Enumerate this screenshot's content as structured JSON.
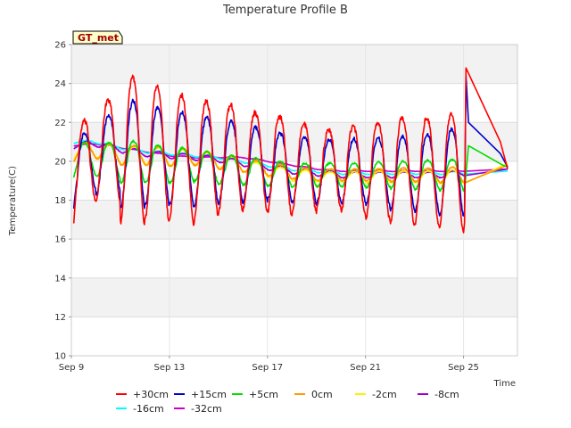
{
  "chart_data": {
    "type": "line",
    "title": "Temperature Profile B",
    "xlabel": "Time",
    "ylabel": "Temperature(C)",
    "badge": "GT_met",
    "xlim": [
      0,
      18.2
    ],
    "ylim": [
      10,
      26
    ],
    "x_ticks": [
      {
        "label": "Sep 9",
        "value": 0
      },
      {
        "label": "Sep 13",
        "value": 4
      },
      {
        "label": "Sep 17",
        "value": 8
      },
      {
        "label": "Sep 21",
        "value": 12
      },
      {
        "label": "Sep 25",
        "value": 16
      }
    ],
    "y_ticks": [
      10,
      12,
      14,
      16,
      18,
      20,
      22,
      24,
      26
    ],
    "grid": true,
    "legend_position": "bottom",
    "series": [
      {
        "name": "+30cm",
        "color": "#ff0000",
        "base": [
          18.6,
          20.5,
          20.6,
          20.5,
          20.3,
          20.0,
          20.2,
          20.1,
          19.9,
          19.7,
          19.6,
          19.6,
          19.5,
          19.5,
          19.5,
          19.5,
          19.4,
          19.5,
          19.6
        ],
        "amp": [
          5.0,
          5.2,
          7.5,
          7.0,
          6.5,
          6.0,
          5.5,
          5.0,
          5.0,
          4.5,
          4.0,
          4.5,
          5.0,
          5.5,
          5.5,
          6.0,
          5.5,
          1.0,
          0.4
        ],
        "phase": 0,
        "jitter": 0.25,
        "tail": [
          [
            16.1,
            24.8
          ],
          [
            17.5,
            21.0
          ],
          [
            17.8,
            19.6
          ]
        ]
      },
      {
        "name": "+15cm",
        "color": "#0000cc",
        "base": [
          19.0,
          20.3,
          20.4,
          20.3,
          20.2,
          20.0,
          20.0,
          19.9,
          19.8,
          19.6,
          19.5,
          19.5,
          19.5,
          19.4,
          19.4,
          19.4,
          19.4,
          19.5,
          19.6
        ],
        "amp": [
          3.5,
          4.0,
          5.5,
          5.0,
          4.8,
          4.5,
          4.2,
          3.8,
          3.5,
          3.4,
          3.2,
          3.3,
          3.5,
          3.8,
          4.0,
          4.5,
          4.2,
          1.0,
          0.4
        ],
        "phase": 0.35,
        "jitter": 0.2,
        "tail": [
          [
            16.1,
            24.4
          ],
          [
            16.2,
            22.0
          ],
          [
            17.5,
            20.4
          ],
          [
            17.8,
            19.7
          ]
        ]
      },
      {
        "name": "+5cm",
        "color": "#00dd00",
        "base": [
          20.0,
          20.1,
          20.0,
          19.9,
          19.8,
          19.8,
          19.6,
          19.5,
          19.4,
          19.3,
          19.3,
          19.3,
          19.3,
          19.3,
          19.3,
          19.3,
          19.3,
          19.5,
          19.6
        ],
        "amp": [
          1.8,
          1.8,
          2.2,
          2.0,
          1.8,
          1.6,
          1.5,
          1.4,
          1.3,
          1.2,
          1.2,
          1.2,
          1.3,
          1.4,
          1.5,
          1.6,
          1.5,
          0.6,
          0.3
        ],
        "phase": 0.6,
        "jitter": 0.1,
        "tail": [
          [
            16.2,
            20.8
          ],
          [
            17.6,
            19.8
          ],
          [
            17.8,
            19.7
          ]
        ]
      },
      {
        "name": "0cm",
        "color": "#ff9900",
        "base": [
          20.4,
          20.6,
          20.3,
          20.3,
          20.2,
          20.2,
          20.0,
          19.8,
          19.6,
          19.4,
          19.3,
          19.3,
          19.3,
          19.3,
          19.3,
          19.3,
          19.3,
          19.5,
          19.6
        ],
        "amp": [
          0.9,
          0.9,
          1.0,
          1.0,
          0.9,
          0.8,
          0.8,
          0.7,
          0.7,
          0.6,
          0.6,
          0.6,
          0.6,
          0.7,
          0.7,
          0.8,
          0.8,
          0.3,
          0.2
        ],
        "phase": 0.9,
        "jitter": 0.06,
        "tail": [
          [
            17.8,
            19.8
          ]
        ]
      },
      {
        "name": "-2cm",
        "color": "#ffee00",
        "base": [
          20.5,
          20.6,
          20.3,
          20.3,
          20.2,
          20.2,
          20.0,
          19.8,
          19.5,
          19.3,
          19.2,
          19.2,
          19.2,
          19.2,
          19.2,
          19.2,
          19.2,
          19.5,
          19.7
        ],
        "amp": [
          0.8,
          0.8,
          0.9,
          0.9,
          0.8,
          0.7,
          0.7,
          0.6,
          0.6,
          0.6,
          0.5,
          0.5,
          0.6,
          0.6,
          0.6,
          0.7,
          0.7,
          0.3,
          0.2
        ],
        "phase": 1.0,
        "jitter": 0.05,
        "tail": [
          [
            17.8,
            19.9
          ]
        ]
      },
      {
        "name": "-8cm",
        "color": "#9900cc",
        "base": [
          20.8,
          20.9,
          20.6,
          20.4,
          20.3,
          20.2,
          20.1,
          19.9,
          19.7,
          19.5,
          19.4,
          19.3,
          19.3,
          19.3,
          19.3,
          19.3,
          19.4,
          19.5,
          19.6
        ],
        "amp": [
          0.3,
          0.3,
          0.3,
          0.3,
          0.3,
          0.3,
          0.3,
          0.3,
          0.3,
          0.3,
          0.3,
          0.3,
          0.3,
          0.3,
          0.3,
          0.3,
          0.3,
          0.1,
          0.1
        ],
        "phase": 1.3,
        "jitter": 0.04,
        "tail": [
          [
            17.8,
            19.6
          ]
        ]
      },
      {
        "name": "-16cm",
        "color": "#00ffff",
        "base": [
          21.0,
          21.0,
          20.7,
          20.5,
          20.4,
          20.3,
          20.2,
          20.0,
          19.8,
          19.6,
          19.5,
          19.4,
          19.4,
          19.4,
          19.4,
          19.4,
          19.4,
          19.4,
          19.5
        ],
        "amp": [
          0.15,
          0.15,
          0.15,
          0.15,
          0.15,
          0.15,
          0.15,
          0.15,
          0.15,
          0.15,
          0.15,
          0.15,
          0.15,
          0.15,
          0.15,
          0.15,
          0.15,
          0.05,
          0.05
        ],
        "phase": 1.6,
        "jitter": 0.03,
        "tail": [
          [
            17.8,
            19.5
          ]
        ]
      },
      {
        "name": "-32cm",
        "color": "#cc00cc",
        "base": [
          20.8,
          20.9,
          20.7,
          20.5,
          20.3,
          20.2,
          20.2,
          20.2,
          20.0,
          19.8,
          19.6,
          19.5,
          19.5,
          19.5,
          19.5,
          19.5,
          19.5,
          19.5,
          19.6
        ],
        "amp": [
          0.05,
          0.05,
          0.05,
          0.05,
          0.05,
          0.05,
          0.05,
          0.05,
          0.05,
          0.05,
          0.05,
          0.05,
          0.05,
          0.05,
          0.05,
          0.05,
          0.05,
          0.02,
          0.02
        ],
        "phase": 2.0,
        "jitter": 0.02,
        "tail": [
          [
            17.8,
            19.6
          ]
        ]
      }
    ]
  }
}
